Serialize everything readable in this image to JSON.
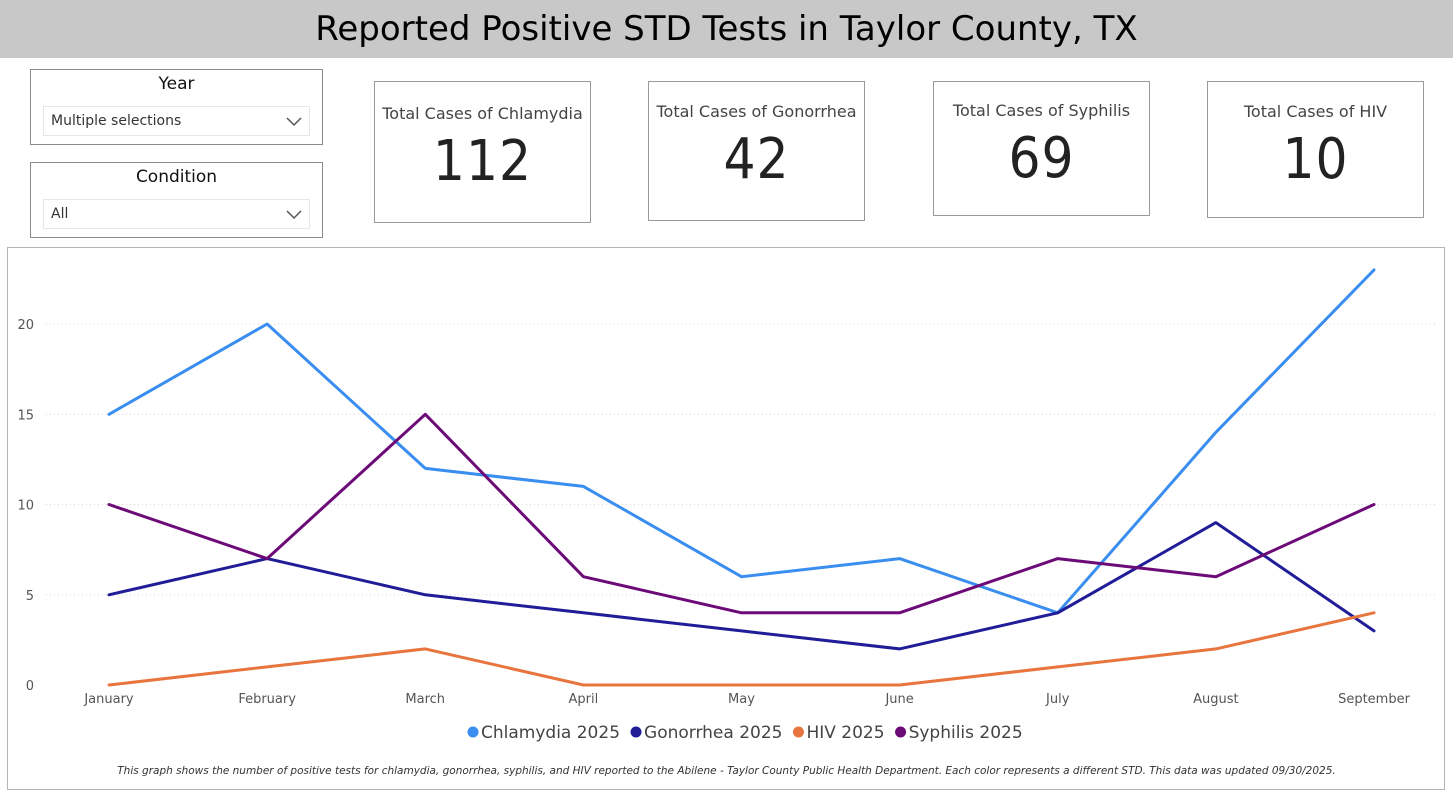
{
  "header": {
    "title": "Reported Positive STD Tests in Taylor County, TX"
  },
  "filters": {
    "year": {
      "label": "Year",
      "value": "Multiple selections"
    },
    "condition": {
      "label": "Condition",
      "value": "All"
    }
  },
  "cards": [
    {
      "label": "Total Cases of Chlamydia",
      "value": "112"
    },
    {
      "label": "Total Cases of Gonorrhea",
      "value": "42"
    },
    {
      "label": "Total Cases of Syphilis",
      "value": "69"
    },
    {
      "label": "Total Cases of HIV",
      "value": "10"
    }
  ],
  "chart_data": {
    "type": "line",
    "title": "",
    "xlabel": "",
    "ylabel": "",
    "categories": [
      "January",
      "February",
      "March",
      "April",
      "May",
      "June",
      "July",
      "August",
      "September"
    ],
    "ylim": [
      0,
      23
    ],
    "yticks": [
      0,
      5,
      10,
      15,
      20
    ],
    "grid": true,
    "legend_position": "bottom-center",
    "series": [
      {
        "name": "Chlamydia 2025",
        "color": "#3a8ef0",
        "values": [
          15,
          20,
          12,
          11,
          6,
          7,
          4,
          14,
          23
        ]
      },
      {
        "name": "Gonorrhea 2025",
        "color": "#211c97",
        "values": [
          5,
          7,
          5,
          4,
          3,
          2,
          4,
          9,
          3
        ]
      },
      {
        "name": "HIV 2025",
        "color": "#e8743e",
        "values": [
          0,
          1,
          2,
          0,
          0,
          0,
          1,
          2,
          4
        ]
      },
      {
        "name": "Syphilis 2025",
        "color": "#6c0a78",
        "values": [
          10,
          7,
          15,
          6,
          4,
          4,
          7,
          6,
          10
        ]
      }
    ]
  },
  "footnote": "This graph shows the number of positive tests for chlamydia, gonorrhea, syphilis, and HIV reported to the Abilene - Taylor County Public Health Department. Each color represents a different STD. This data was updated 09/30/2025."
}
